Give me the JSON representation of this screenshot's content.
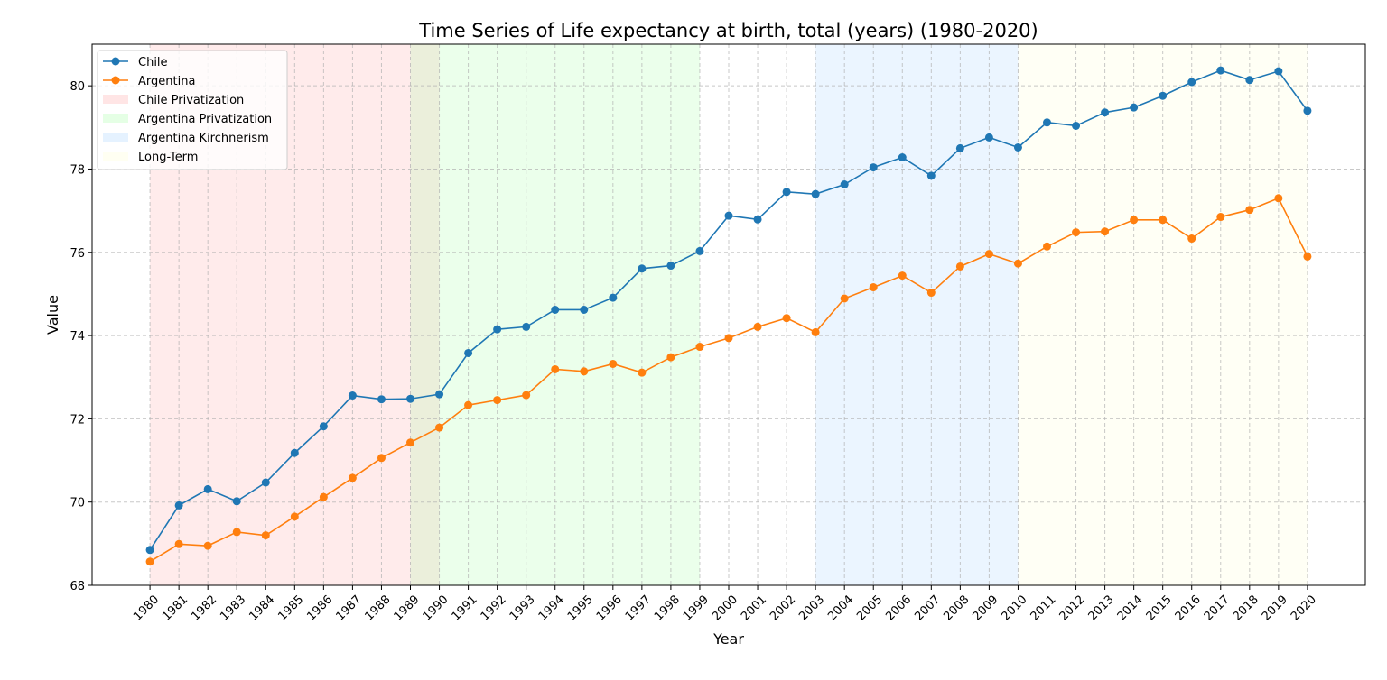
{
  "chart_data": {
    "type": "line",
    "title": "Time Series of Life expectancy at birth, total (years) (1980-2020)",
    "xlabel": "Year",
    "ylabel": "Value",
    "ylim": [
      68,
      81
    ],
    "yticks": [
      68,
      70,
      72,
      74,
      76,
      78,
      80
    ],
    "x": [
      1980,
      1981,
      1982,
      1983,
      1984,
      1985,
      1986,
      1987,
      1988,
      1989,
      1990,
      1991,
      1992,
      1993,
      1994,
      1995,
      1996,
      1997,
      1998,
      1999,
      2000,
      2001,
      2002,
      2003,
      2004,
      2005,
      2006,
      2007,
      2008,
      2009,
      2010,
      2011,
      2012,
      2013,
      2014,
      2015,
      2016,
      2017,
      2018,
      2019,
      2020
    ],
    "grid": true,
    "legend_position": "top-left",
    "series": [
      {
        "name": "Chile",
        "color": "#1f77b4",
        "values": [
          68.85,
          69.92,
          70.31,
          70.02,
          70.47,
          71.18,
          71.82,
          72.56,
          72.47,
          72.48,
          72.59,
          73.58,
          74.15,
          74.21,
          74.62,
          74.62,
          74.91,
          75.61,
          75.68,
          76.03,
          76.88,
          76.79,
          77.45,
          77.4,
          77.63,
          78.04,
          78.28,
          77.84,
          78.5,
          78.76,
          78.52,
          79.12,
          79.04,
          79.36,
          79.48,
          79.76,
          80.09,
          80.37,
          80.14,
          80.35,
          79.4
        ]
      },
      {
        "name": "Argentina",
        "color": "#ff7f0e",
        "values": [
          68.57,
          68.99,
          68.95,
          69.28,
          69.2,
          69.65,
          70.12,
          70.58,
          71.06,
          71.43,
          71.79,
          72.33,
          72.45,
          72.57,
          73.19,
          73.14,
          73.32,
          73.11,
          73.48,
          73.73,
          73.94,
          74.21,
          74.42,
          74.08,
          74.89,
          75.16,
          75.44,
          75.03,
          75.66,
          75.96,
          75.73,
          76.14,
          76.48,
          76.5,
          76.78,
          76.78,
          76.33,
          76.85,
          77.02,
          77.3,
          75.9
        ]
      }
    ],
    "periods": [
      {
        "name": "Chile Privatization",
        "start": 1980,
        "end": 1990,
        "color": "#ff9999"
      },
      {
        "name": "Argentina Privatization",
        "start": 1989,
        "end": 1999,
        "color": "#99ff99"
      },
      {
        "name": "Argentina Kirchnerism",
        "start": 2003,
        "end": 2010,
        "color": "#99ccff"
      },
      {
        "name": "Long-Term",
        "start": 2010,
        "end": 2020,
        "color": "#ffffcc"
      }
    ]
  }
}
